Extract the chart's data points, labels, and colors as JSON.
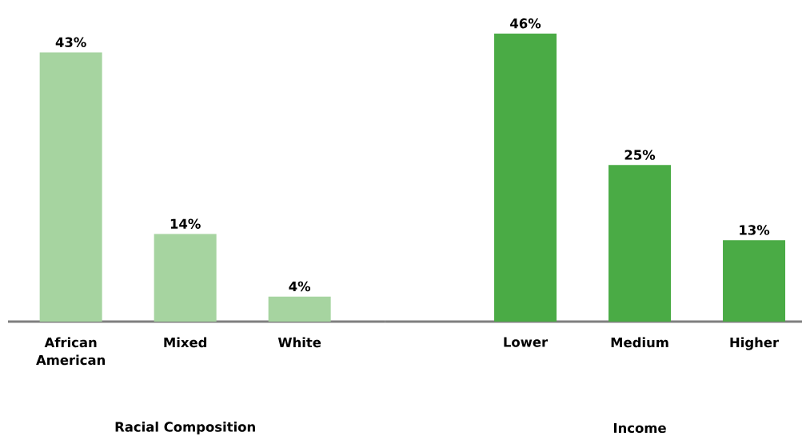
{
  "chart_data": [
    {
      "type": "bar",
      "categories": [
        "African American",
        "Mixed",
        "White"
      ],
      "values": [
        43,
        14,
        4
      ],
      "value_labels": [
        "43%",
        "14%",
        "4%"
      ],
      "color": "#a6d4a0",
      "xlabel": "Racial Composition"
    },
    {
      "type": "bar",
      "categories": [
        "Lower",
        "Medium",
        "Higher"
      ],
      "values": [
        46,
        25,
        13
      ],
      "value_labels": [
        "46%",
        "25%",
        "13%"
      ],
      "color": "#4aab45",
      "xlabel": "Income"
    }
  ]
}
